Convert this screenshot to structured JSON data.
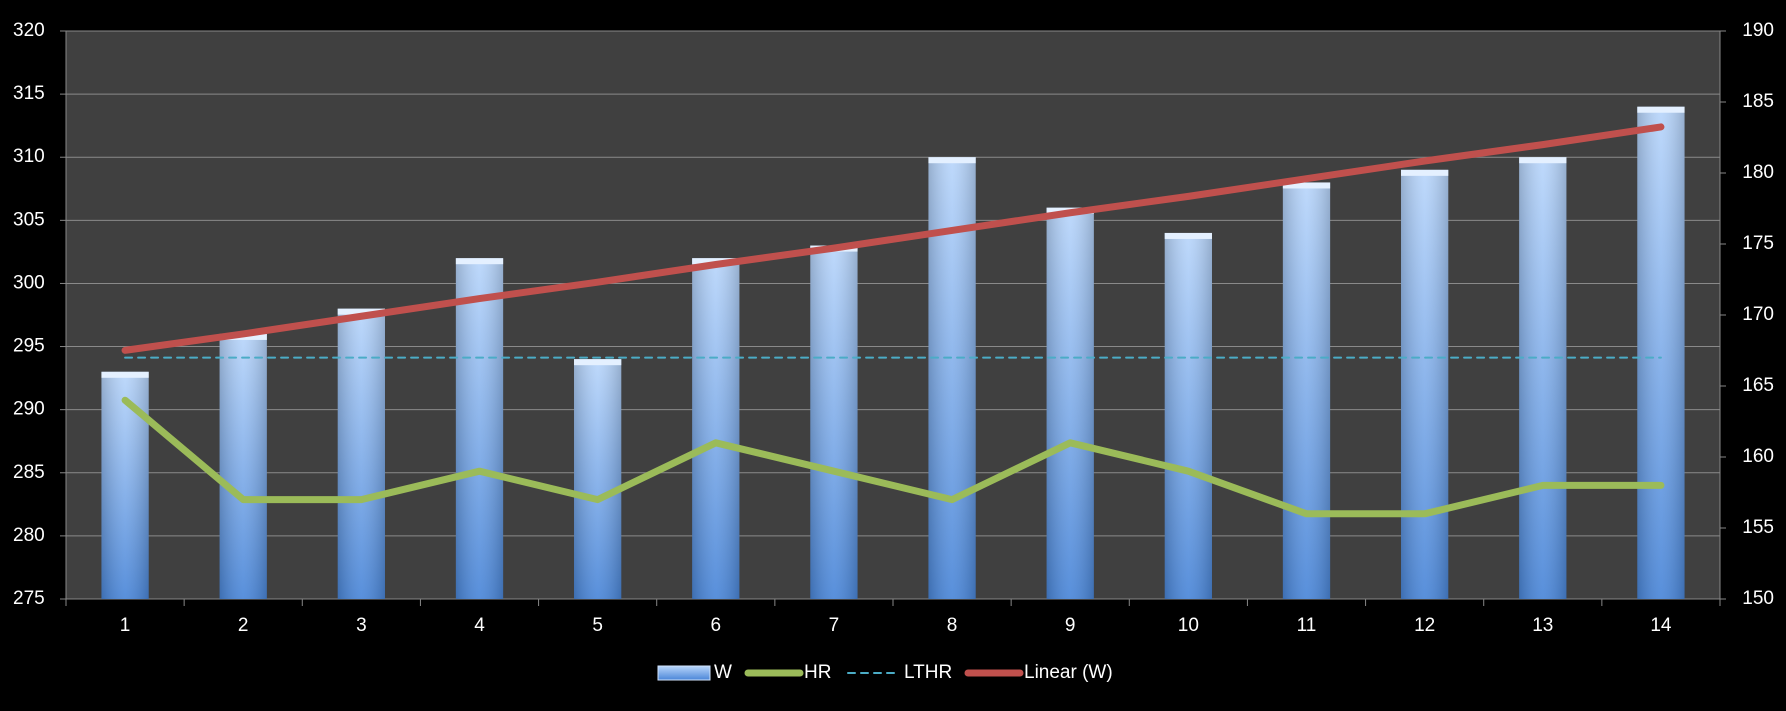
{
  "chart_data": {
    "type": "bar",
    "categories": [
      1,
      2,
      3,
      4,
      5,
      6,
      7,
      8,
      9,
      10,
      11,
      12,
      13,
      14
    ],
    "series": [
      {
        "name": "W",
        "type": "bar",
        "color": "#7fb2f0",
        "values": [
          293,
          296,
          298,
          302,
          294,
          302,
          303,
          310,
          306,
          304,
          308,
          309,
          310,
          314
        ]
      },
      {
        "name": "HR",
        "type": "line",
        "color": "#9bbb59",
        "axis": "y2",
        "values": [
          164,
          157,
          157,
          159,
          157,
          161,
          159,
          157,
          161,
          159,
          156,
          156,
          158,
          158
        ]
      },
      {
        "name": "LTHR",
        "type": "line",
        "color": "#4bacc6",
        "axis": "y2",
        "dashed": true,
        "values": [
          167,
          167,
          167,
          167,
          167,
          167,
          167,
          167,
          167,
          167,
          167,
          167,
          167,
          167
        ]
      },
      {
        "name": "Linear (W)",
        "type": "line",
        "color": "#c0504d",
        "values": [
          294.7,
          296.0,
          297.4,
          298.8,
          300.1,
          301.5,
          302.8,
          304.2,
          305.6,
          306.9,
          308.3,
          309.7,
          311.0,
          312.4
        ]
      }
    ],
    "ylim": [
      275,
      320
    ],
    "yticks": [
      275,
      280,
      285,
      290,
      295,
      300,
      305,
      310,
      315,
      320
    ],
    "y2lim": [
      150,
      190
    ],
    "y2ticks": [
      150,
      155,
      160,
      165,
      170,
      175,
      180,
      185,
      190
    ],
    "grid": true,
    "legend": "bottom"
  }
}
